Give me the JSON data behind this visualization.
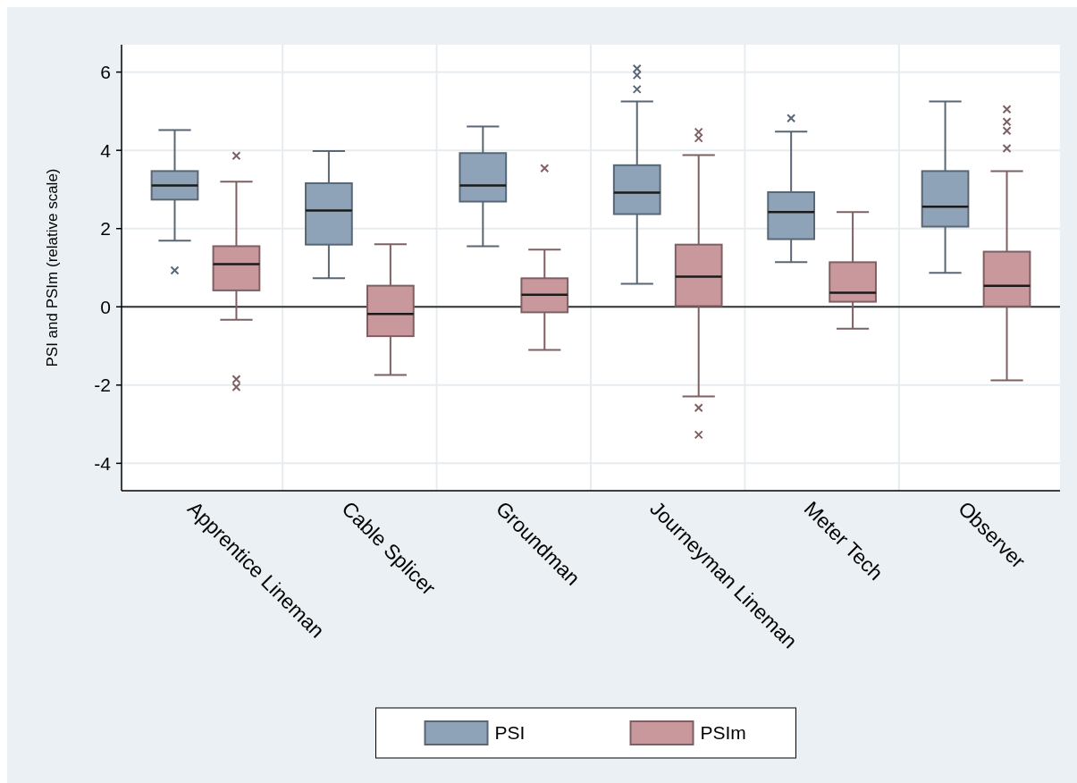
{
  "chart_data": {
    "type": "box",
    "ylabel": "PSI and PSIm (relative scale)",
    "categories": [
      "Apprentice Lineman",
      "Cable Splicer",
      "Groundman",
      "Journeyman Lineman",
      "Meter Tech",
      "Observer"
    ],
    "ylim": [
      -4.7,
      6.7
    ],
    "yticks": [
      -4,
      -2,
      0,
      2,
      4,
      6
    ],
    "grid": true,
    "legend": "bottom",
    "marker": "cross",
    "ref_lines": [
      {
        "axis": "y",
        "value": 0,
        "color": "#333333"
      }
    ],
    "series": [
      {
        "name": "PSI",
        "color": "#8ea3b8",
        "boxes": [
          {
            "low": 1.69,
            "q1": 2.74,
            "median": 3.1,
            "q3": 3.47,
            "high": 4.52,
            "outliers": [
              0.93
            ]
          },
          {
            "low": 0.73,
            "q1": 1.59,
            "median": 2.46,
            "q3": 3.16,
            "high": 3.98
          },
          {
            "low": 1.55,
            "q1": 2.69,
            "median": 3.1,
            "q3": 3.93,
            "high": 4.61
          },
          {
            "low": 0.59,
            "q1": 2.37,
            "median": 2.92,
            "q3": 3.62,
            "high": 5.25,
            "outliers": [
              6.09,
              5.92,
              5.56
            ]
          },
          {
            "low": 1.14,
            "q1": 1.73,
            "median": 2.42,
            "q3": 2.93,
            "high": 4.48,
            "outliers": [
              4.82
            ]
          },
          {
            "low": 0.87,
            "q1": 2.05,
            "median": 2.56,
            "q3": 3.47,
            "high": 5.25
          }
        ]
      },
      {
        "name": "PSIm",
        "color": "#c9989c",
        "boxes": [
          {
            "low": -0.33,
            "q1": 0.42,
            "median": 1.09,
            "q3": 1.55,
            "high": 3.2,
            "outliers": [
              3.86,
              -1.85,
              -2.05
            ]
          },
          {
            "low": -1.74,
            "q1": -0.75,
            "median": -0.18,
            "q3": 0.54,
            "high": 1.6
          },
          {
            "low": -1.1,
            "q1": -0.14,
            "median": 0.31,
            "q3": 0.73,
            "high": 1.46,
            "outliers": [
              3.54
            ]
          },
          {
            "low": -2.29,
            "q1": 0.02,
            "median": 0.77,
            "q3": 1.59,
            "high": 3.88,
            "outliers": [
              4.47,
              4.31,
              -2.58,
              -3.27
            ]
          },
          {
            "low": -0.56,
            "q1": 0.13,
            "median": 0.36,
            "q3": 1.14,
            "high": 2.42
          },
          {
            "low": -1.88,
            "q1": 0.01,
            "median": 0.54,
            "q3": 1.41,
            "high": 3.47,
            "outliers": [
              5.05,
              4.73,
              4.5,
              4.05
            ]
          }
        ]
      }
    ]
  }
}
